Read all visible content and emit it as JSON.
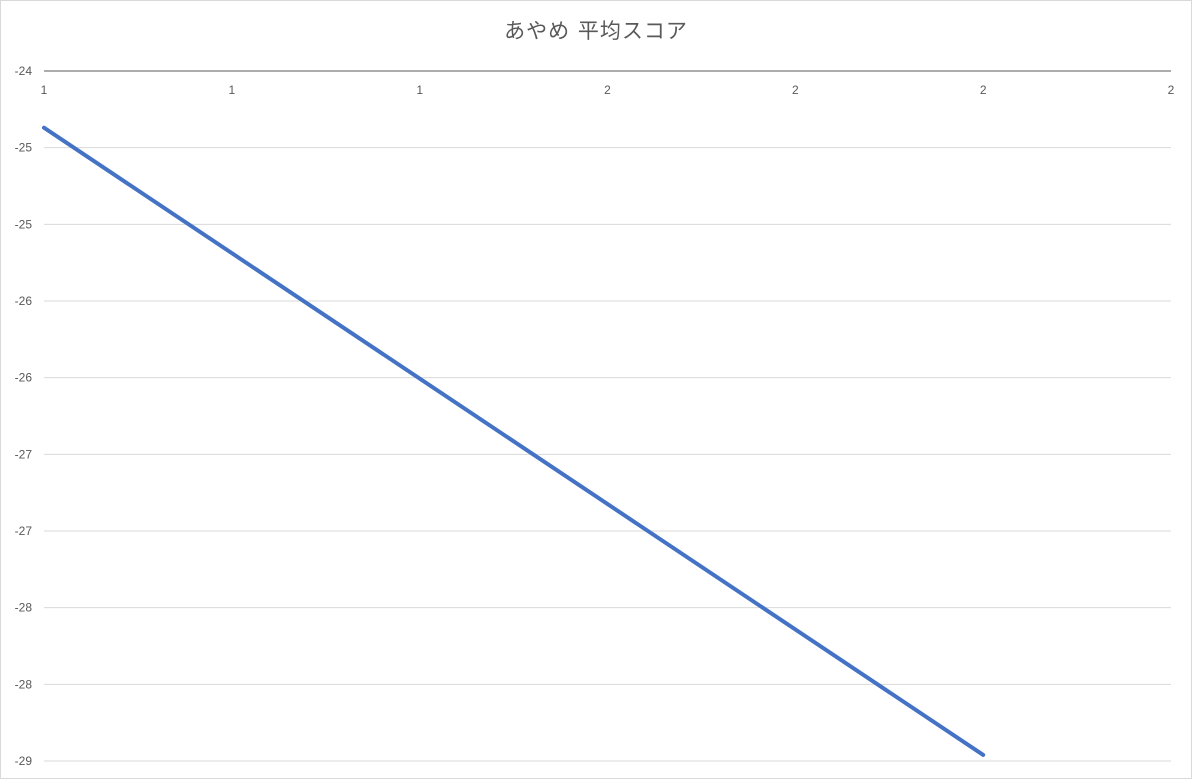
{
  "chart_data": {
    "type": "line",
    "title": "あやめ 平均スコア",
    "xlabel": "",
    "ylabel": "",
    "x_tick_labels": [
      "1",
      "1",
      "1",
      "2",
      "2",
      "2",
      "2"
    ],
    "y_tick_labels": [
      "-24",
      "-25",
      "-25",
      "-26",
      "-26",
      "-27",
      "-27",
      "-28",
      "-28",
      "-29"
    ],
    "ylim": [
      -28.5,
      -24.0
    ],
    "xlim": [
      1.0,
      2.2
    ],
    "x_axis_position": "top",
    "grid": true,
    "legend": "none",
    "series": [
      {
        "color": "#4472c4",
        "x": [
          1.0,
          2.0
        ],
        "y": [
          -24.37,
          -28.46
        ]
      }
    ]
  }
}
